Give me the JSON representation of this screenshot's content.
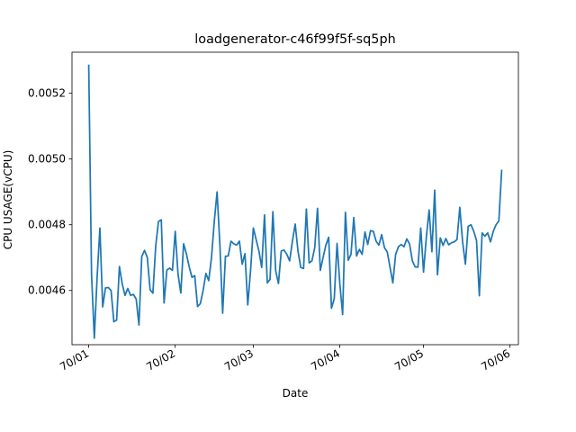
{
  "chart_data": {
    "type": "line",
    "title": "loadgenerator-c46f99f5f-sq5ph",
    "xlabel": "Date",
    "ylabel": "CPU USAGE(vCPU)",
    "x_tick_labels": [
      "70/01",
      "70/02",
      "70/03",
      "70/04",
      "70/05",
      "70/06"
    ],
    "x_tick_dates": [
      "1970-01-01",
      "1970-02-01",
      "1970-03-01",
      "1970-04-01",
      "1970-05-01",
      "1970-06-01"
    ],
    "x_range": [
      "1969-12-26",
      "1970-06-04"
    ],
    "y_ticks": [
      0.0046,
      0.0048,
      0.005,
      0.0052
    ],
    "y_tick_labels": [
      "0.0046",
      "0.0048",
      "0.0050",
      "0.0052"
    ],
    "ylim": [
      0.004435,
      0.005325
    ],
    "grid": false,
    "line_color": "#1f77b4",
    "series": [
      {
        "x_start": "1970-01-01",
        "x_step_days": 1,
        "values": [
          0.005285,
          0.00465,
          0.004455,
          0.00464,
          0.00479,
          0.00455,
          0.004608,
          0.004609,
          0.0046,
          0.004505,
          0.00451,
          0.004673,
          0.00462,
          0.004585,
          0.004606,
          0.004585,
          0.004588,
          0.004574,
          0.004495,
          0.004703,
          0.004722,
          0.0047,
          0.004602,
          0.004592,
          0.004735,
          0.00481,
          0.004815,
          0.004562,
          0.004662,
          0.004668,
          0.004661,
          0.00478,
          0.00465,
          0.004592,
          0.004742,
          0.004712,
          0.004672,
          0.00464,
          0.004645,
          0.004551,
          0.00456,
          0.0046,
          0.004652,
          0.00463,
          0.0047,
          0.00481,
          0.0049,
          0.00474,
          0.004531,
          0.004704,
          0.004705,
          0.00475,
          0.004742,
          0.004738,
          0.00475,
          0.00468,
          0.004712,
          0.004556,
          0.00466,
          0.00479,
          0.004755,
          0.00472,
          0.00467,
          0.00483,
          0.004623,
          0.004634,
          0.00484,
          0.00466,
          0.004621,
          0.00472,
          0.004723,
          0.00471,
          0.00469,
          0.00475,
          0.004802,
          0.00472,
          0.00467,
          0.004667,
          0.004848,
          0.004684,
          0.00469,
          0.00473,
          0.00485,
          0.004661,
          0.0047,
          0.004738,
          0.004762,
          0.004546,
          0.004575,
          0.004743,
          0.00462,
          0.004527,
          0.004838,
          0.004692,
          0.00471,
          0.004822,
          0.004705,
          0.004725,
          0.00471,
          0.004778,
          0.00474,
          0.004782,
          0.00478,
          0.00475,
          0.004738,
          0.00477,
          0.00473,
          0.004717,
          0.00467,
          0.004623,
          0.00471,
          0.004733,
          0.00474,
          0.004733,
          0.004757,
          0.004741,
          0.00469,
          0.004672,
          0.004671,
          0.00479,
          0.004656,
          0.004762,
          0.004845,
          0.004718,
          0.004905,
          0.004648,
          0.00476,
          0.004737,
          0.004758,
          0.004739,
          0.004745,
          0.004748,
          0.004755,
          0.004853,
          0.004748,
          0.00468,
          0.004795,
          0.0048,
          0.00478,
          0.004752,
          0.004584,
          0.004775,
          0.004765,
          0.004775,
          0.004748,
          0.00478,
          0.0048,
          0.004812,
          0.004965
        ]
      }
    ]
  }
}
